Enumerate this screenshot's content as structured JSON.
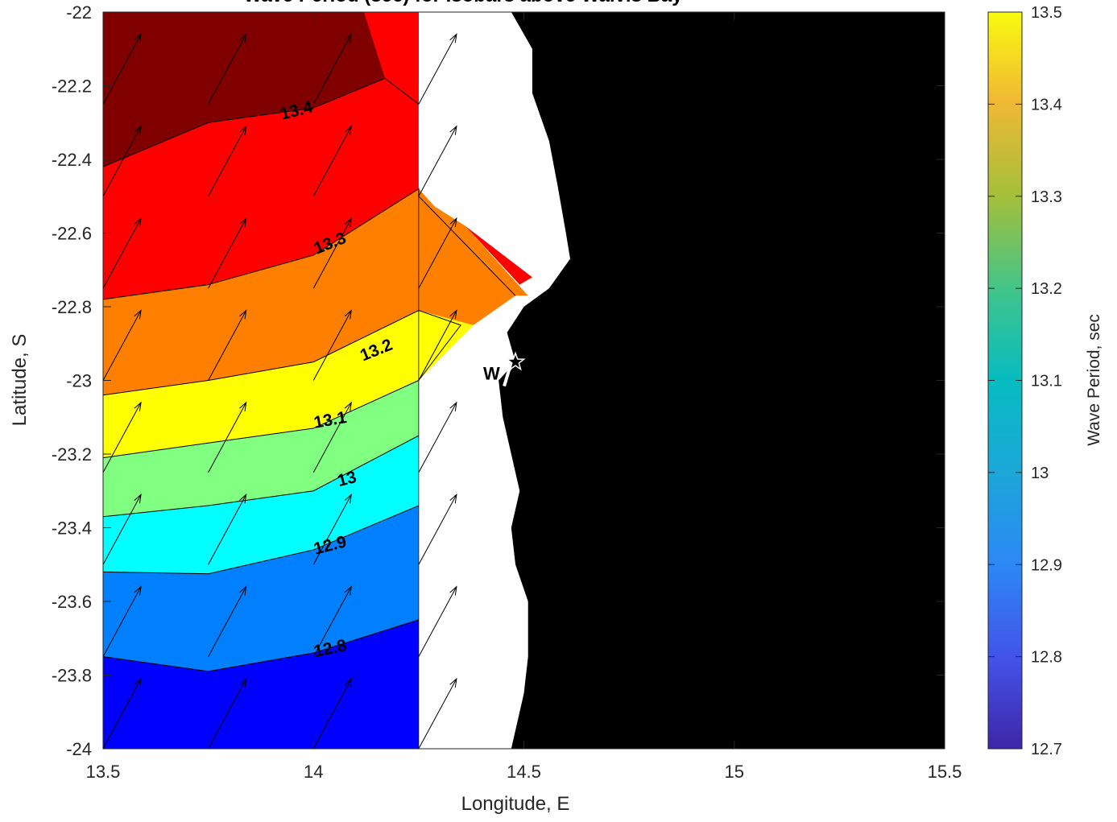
{
  "chart_data": {
    "type": "heatmap",
    "title": "Wave Period (sec) for Isobars above Walvis Bay",
    "xlabel": "Longitude, E",
    "ylabel": "Latitude, S",
    "xlim": [
      13.5,
      15.5
    ],
    "ylim": [
      -24,
      -22
    ],
    "xticks": [
      13.5,
      14,
      14.5,
      15,
      15.5
    ],
    "xtick_labels": [
      "13.5",
      "14",
      "14.5",
      "15",
      "15.5"
    ],
    "yticks": [
      -24,
      -23.8,
      -23.6,
      -23.4,
      -23.2,
      -23,
      -22.8,
      -22.6,
      -22.4,
      -22.2,
      -22
    ],
    "ytick_labels": [
      "-24",
      "-23.8",
      "-23.6",
      "-23.4",
      "-23.2",
      "-23",
      "-22.8",
      "-22.6",
      "-22.4",
      "-22.2",
      "-22"
    ],
    "grid": false,
    "land_color": "#000000",
    "contour_levels": [
      12.8,
      12.9,
      13.0,
      13.1,
      13.2,
      13.3,
      13.4
    ],
    "contour_labels": [
      "12.8",
      "12.9",
      "13",
      "13.1",
      "13.2",
      "13.3",
      "13.4"
    ],
    "band_colors": [
      "#0000ff",
      "#0080ff",
      "#00ffff",
      "#80ff80",
      "#ffff00",
      "#ff8000",
      "#ff0000",
      "#800000"
    ],
    "contour_lines": [
      {
        "level": 12.8,
        "points": [
          [
            13.5,
            -23.75
          ],
          [
            13.75,
            -23.79
          ],
          [
            14.0,
            -23.74
          ],
          [
            14.25,
            -23.65
          ]
        ]
      },
      {
        "level": 12.9,
        "points": [
          [
            13.5,
            -23.52
          ],
          [
            13.75,
            -23.525
          ],
          [
            14.0,
            -23.46
          ],
          [
            14.25,
            -23.34
          ]
        ]
      },
      {
        "level": 13.0,
        "points": [
          [
            13.5,
            -23.37
          ],
          [
            13.75,
            -23.34
          ],
          [
            14.0,
            -23.3
          ],
          [
            14.25,
            -23.15
          ]
        ]
      },
      {
        "level": 13.1,
        "points": [
          [
            13.5,
            -23.21
          ],
          [
            13.75,
            -23.17
          ],
          [
            14.0,
            -23.13
          ],
          [
            14.25,
            -23.0
          ]
        ]
      },
      {
        "level": 13.2,
        "points": [
          [
            13.5,
            -23.04
          ],
          [
            13.75,
            -23.0
          ],
          [
            14.0,
            -22.95
          ],
          [
            14.25,
            -22.81
          ],
          [
            14.35,
            -22.85
          ],
          [
            14.25,
            -23.0
          ]
        ]
      },
      {
        "level": 13.3,
        "points": [
          [
            13.5,
            -22.78
          ],
          [
            13.75,
            -22.74
          ],
          [
            14.0,
            -22.66
          ],
          [
            14.25,
            -22.48
          ],
          [
            14.25,
            -22.5
          ],
          [
            14.48,
            -22.77
          ]
        ]
      },
      {
        "level": 13.4,
        "points": [
          [
            13.5,
            -22.42
          ],
          [
            13.75,
            -22.3
          ],
          [
            14.0,
            -22.26
          ],
          [
            14.17,
            -22.18
          ],
          [
            14.25,
            -22.25
          ]
        ]
      }
    ],
    "contour_label_positions": [
      {
        "text": "12.8",
        "x": 14.04,
        "y": -23.73,
        "angle": -12
      },
      {
        "text": "12.9",
        "x": 14.04,
        "y": -23.45,
        "angle": -14
      },
      {
        "text": "13",
        "x": 14.08,
        "y": -23.27,
        "angle": -14
      },
      {
        "text": "13.1",
        "x": 14.04,
        "y": -23.11,
        "angle": -10
      },
      {
        "text": "13.2",
        "x": 14.15,
        "y": -22.92,
        "angle": -22
      },
      {
        "text": "13.3",
        "x": 14.04,
        "y": -22.63,
        "angle": -22
      },
      {
        "text": "13.4",
        "x": 13.96,
        "y": -22.27,
        "angle": -14
      }
    ],
    "vectors": {
      "x": [
        13.5,
        13.75,
        14.0,
        14.25
      ],
      "y": [
        -24.0,
        -23.75,
        -23.5,
        -23.25,
        -23.0,
        -22.75,
        -22.5,
        -22.25,
        -22.0
      ],
      "u": 0.09,
      "v": 0.19
    },
    "colorbar": {
      "label": "Wave Period, sec",
      "range": [
        12.7,
        13.5
      ],
      "ticks": [
        12.7,
        12.8,
        12.9,
        13.0,
        13.1,
        13.2,
        13.3,
        13.4,
        13.5
      ],
      "tick_labels": [
        "12.7",
        "12.8",
        "12.9",
        "13",
        "13.1",
        "13.2",
        "13.3",
        "13.4",
        "13.5"
      ],
      "colormap": "parula"
    },
    "marker": {
      "symbol": "star",
      "lon": 14.48,
      "lat": -22.95,
      "label": "W"
    }
  }
}
